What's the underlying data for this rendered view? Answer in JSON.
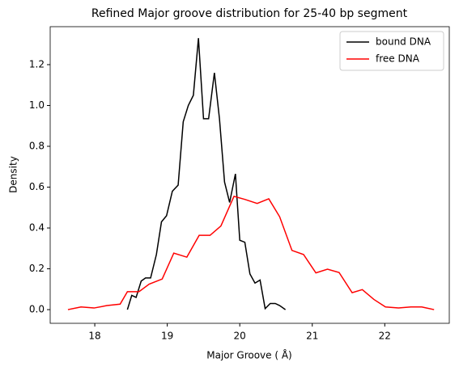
{
  "chart_data": {
    "type": "line",
    "title": "Refined Major groove distribution for 25-40 bp segment",
    "xlabel": "Major Groove ( Å)",
    "ylabel": "Density",
    "xlim": [
      17.385,
      22.89
    ],
    "ylim": [
      -0.067,
      1.386
    ],
    "xticks": [
      18,
      19,
      20,
      21,
      22
    ],
    "yticks": [
      {
        "value": 0,
        "label": "0.0"
      },
      0.2,
      0.4,
      0.6,
      0.8,
      {
        "value": 1,
        "label": "1.0"
      },
      1.2
    ],
    "legend": "upper right",
    "series": [
      {
        "name": "bound DNA",
        "color": "#000000",
        "x": [
          18.45,
          18.51,
          18.57,
          18.64,
          18.7,
          18.77,
          18.85,
          18.92,
          18.99,
          19.07,
          19.15,
          19.22,
          19.29,
          19.36,
          19.43,
          19.5,
          19.57,
          19.65,
          19.72,
          19.79,
          19.86,
          19.94,
          20.0,
          20.07,
          20.14,
          20.21,
          20.28,
          20.35,
          20.42,
          20.49,
          20.55,
          20.63
        ],
        "values": [
          0,
          0.07,
          0.06,
          0.14,
          0.155,
          0.155,
          0.27,
          0.43,
          0.46,
          0.58,
          0.61,
          0.92,
          1.0,
          1.05,
          1.33,
          0.935,
          0.935,
          1.16,
          0.935,
          0.625,
          0.525,
          0.665,
          0.34,
          0.33,
          0.175,
          0.13,
          0.145,
          0.005,
          0.03,
          0.03,
          0.02,
          0
        ]
      },
      {
        "name": "free DNA",
        "color": "#ff0000",
        "x": [
          17.63,
          17.81,
          17.99,
          18.17,
          18.35,
          18.45,
          18.61,
          18.75,
          18.93,
          19.09,
          19.27,
          19.44,
          19.59,
          19.74,
          19.92,
          20.07,
          20.24,
          20.4,
          20.55,
          20.72,
          20.88,
          21.05,
          21.21,
          21.37,
          21.55,
          21.69,
          21.85,
          22.01,
          22.19,
          22.36,
          22.51,
          22.68
        ],
        "values": [
          0,
          0.013,
          0.008,
          0.02,
          0.027,
          0.088,
          0.088,
          0.125,
          0.15,
          0.277,
          0.257,
          0.364,
          0.364,
          0.41,
          0.555,
          0.54,
          0.52,
          0.543,
          0.455,
          0.29,
          0.27,
          0.18,
          0.198,
          0.182,
          0.083,
          0.098,
          0.05,
          0.013,
          0.008,
          0.013,
          0.013,
          0
        ]
      }
    ]
  }
}
